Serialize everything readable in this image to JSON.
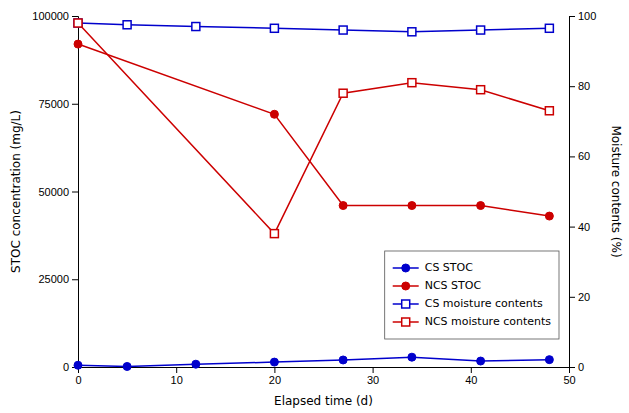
{
  "chart_data": {
    "type": "line",
    "xlabel": "Elapsed time (d)",
    "ylabel": "STOC concentration (mg/L)",
    "y2label": "Moisture contents (%)",
    "series": [
      {
        "name": "CS STOC",
        "color": "#0000CC",
        "marker": "circle",
        "line_style": "solid",
        "x": [
          0,
          5,
          12,
          20,
          27,
          34,
          41,
          48
        ],
        "values": [
          500,
          150,
          800,
          1400,
          2000,
          2800,
          1700,
          2100
        ]
      },
      {
        "name": "NCS STOC",
        "color": "#CC0000",
        "marker": "circle",
        "line_style": "solid",
        "x": [
          0,
          20,
          27,
          34,
          41,
          48
        ],
        "values": [
          92000,
          72000,
          46000,
          46000,
          46000,
          43000
        ]
      },
      {
        "name": "CS moisture contents",
        "color": "#0000CC",
        "marker": "square",
        "line_style": "solid",
        "axis": "y2",
        "x": [
          0,
          5,
          12,
          20,
          27,
          34,
          41,
          48
        ],
        "values": [
          98,
          97.5,
          97,
          96.5,
          96,
          95.5,
          96,
          96.5
        ]
      },
      {
        "name": "NCS moisture contents",
        "color": "#CC0000",
        "marker": "square",
        "line_style": "solid",
        "axis": "y2",
        "x": [
          0,
          20,
          27,
          34,
          41,
          48
        ],
        "values": [
          98,
          38,
          78,
          81,
          79,
          73
        ]
      }
    ],
    "xlim": [
      0,
      50
    ],
    "xticks": [
      0,
      10,
      20,
      30,
      40,
      50
    ],
    "ylim": [
      0,
      100000
    ],
    "yticks": [
      0,
      25000,
      50000,
      75000,
      100000
    ],
    "y2lim": [
      0,
      100
    ],
    "y2ticks": [
      0,
      20,
      40,
      60,
      80,
      100
    ],
    "legend": "lower right"
  }
}
